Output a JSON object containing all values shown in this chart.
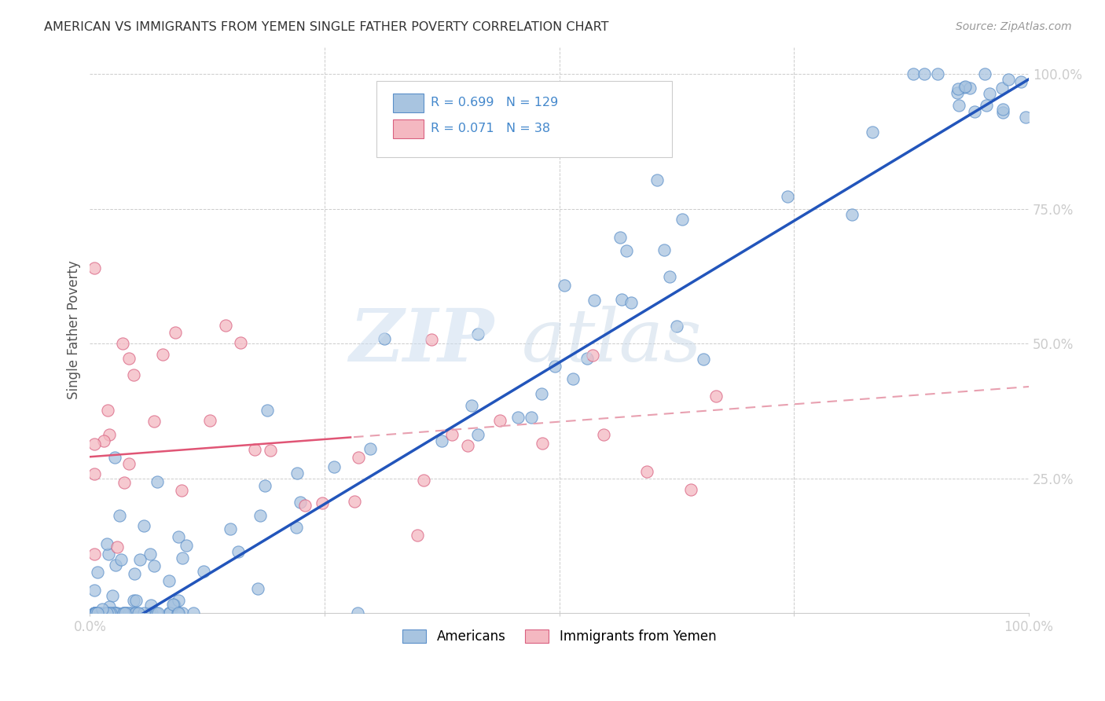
{
  "title": "AMERICAN VS IMMIGRANTS FROM YEMEN SINGLE FATHER POVERTY CORRELATION CHART",
  "source": "Source: ZipAtlas.com",
  "ylabel": "Single Father Poverty",
  "blue_R": 0.699,
  "blue_N": 129,
  "pink_R": 0.071,
  "pink_N": 38,
  "blue_color": "#a8c4e0",
  "blue_edge_color": "#5b8fc9",
  "pink_color": "#f4b8c1",
  "pink_edge_color": "#d96080",
  "blue_line_color": "#2255bb",
  "pink_line_color": "#e05575",
  "pink_dash_color": "#e8a0b0",
  "watermark_zip_color": "#ccddef",
  "watermark_atlas_color": "#c8d8e8",
  "background_color": "#ffffff",
  "grid_color": "#cccccc",
  "title_color": "#333333",
  "source_color": "#999999",
  "axis_label_color": "#4488cc",
  "ylabel_color": "#555555"
}
